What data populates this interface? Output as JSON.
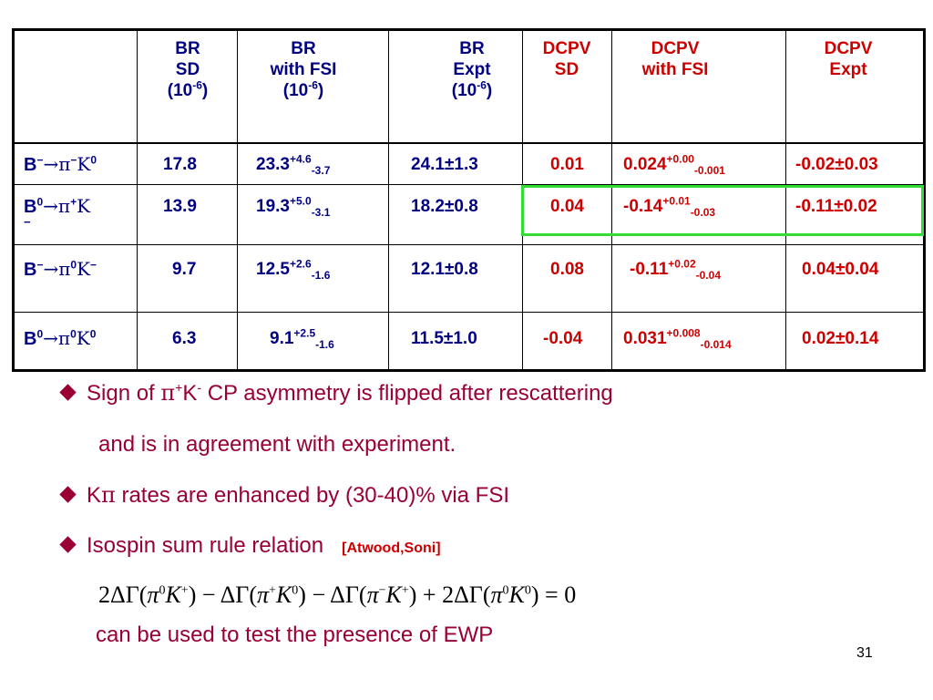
{
  "table": {
    "headers": [
      {
        "l1": "BR",
        "l2": "SD",
        "l3": "(10",
        "l3_sup": "-6",
        "l3_end": ")"
      },
      {
        "l1": "BR",
        "l2": "with FSI",
        "l3": "(10",
        "l3_sup": "-6",
        "l3_end": ")"
      },
      {
        "l1": "BR",
        "l2": "Expt",
        "l3": "(10",
        "l3_sup": "-6",
        "l3_end": ")"
      },
      {
        "l1": "DCPV",
        "l2": "SD"
      },
      {
        "l1": "DCPV",
        "l2": "with FSI"
      },
      {
        "l1": "DCPV",
        "l2": "Expt"
      }
    ],
    "rows": [
      {
        "proc": {
          "a": "B",
          "a_sup": "−",
          "arrow": "→",
          "b": "π",
          "b_sup": "−",
          "c": "K",
          "c_sup": "0"
        },
        "br_sd": "17.8",
        "br_fsi": {
          "v": "23.3",
          "up": "+4.6",
          "dn": "-3.7"
        },
        "br_expt": "24.1±1.3",
        "cp_sd": "0.01",
        "cp_fsi": {
          "v": "0.024",
          "up": "+0.00",
          "dn": "-0.001"
        },
        "cp_expt": "-0.02±0.03"
      },
      {
        "proc": {
          "a": "B",
          "a_sup": "0",
          "arrow": "→",
          "b": "π",
          "b_sup": "+",
          "c": "K",
          "c_sub": "−"
        },
        "br_sd": "13.9",
        "br_fsi": {
          "v": "19.3",
          "up": "+5.0",
          "dn": "-3.1"
        },
        "br_expt": "18.2±0.8",
        "cp_sd": "0.04",
        "cp_fsi": {
          "v": "-0.14",
          "up": "+0.01",
          "dn": "-0.03"
        },
        "cp_expt": "-0.11±0.02"
      },
      {
        "proc": {
          "a": "B",
          "a_sup": "−",
          "arrow": "→",
          "b": "π",
          "b_sup": "0",
          "c": "K",
          "c_sup": "−"
        },
        "br_sd": "9.7",
        "br_fsi": {
          "v": "12.5",
          "up": "+2.6",
          "dn": "-1.6"
        },
        "br_expt": "12.1±0.8",
        "cp_sd": "0.08",
        "cp_fsi": {
          "v": "-0.11",
          "up": "+0.02",
          "dn": "-0.04"
        },
        "cp_expt": "0.04±0.04"
      },
      {
        "proc": {
          "a": "B",
          "a_sup": "0",
          "arrow": "→",
          "b": "π",
          "b_sup": "0",
          "c": "K",
          "c_sup": "0"
        },
        "br_sd": "6.3",
        "br_fsi": {
          "v": "9.1",
          "up": "+2.5",
          "dn": "-1.6"
        },
        "br_expt": "11.5±1.0",
        "cp_sd": "-0.04",
        "cp_fsi": {
          "v": "0.031",
          "up": "+0.008",
          "dn": "-0.014"
        },
        "cp_expt": "0.02±0.14"
      }
    ]
  },
  "bullets": {
    "b1_pre": "Sign of ",
    "b1_pi": "π",
    "b1_pi_sup": "+",
    "b1_k": "K",
    "b1_k_sup": "-",
    "b1_post": " CP asymmetry is flipped after rescattering",
    "b1_line2": "and is in agreement with experiment.",
    "b2_k": "K",
    "b2_pi": "π",
    "b2_text": " rates are enhanced by (30-40)% via FSI",
    "b3_text": "Isospin sum rule relation",
    "b3_cite": "[Atwood,Soni]",
    "b3_line2": "can be used to test the presence of EWP"
  },
  "equation": {
    "t1": "2ΔΓ(",
    "t2": ") − ΔΓ(",
    "t3": ") − ΔΓ(",
    "t4": ") + 2ΔΓ(",
    "t5": ") = 0",
    "pi": "π",
    "k": "K",
    "s0": "0",
    "sp": "+",
    "sm": "−"
  },
  "page_number": "31",
  "colors": {
    "header_br": "#000080",
    "header_dcpv": "#cc0000",
    "bullet_text": "#990033",
    "highlight_box": "#33dd33"
  }
}
